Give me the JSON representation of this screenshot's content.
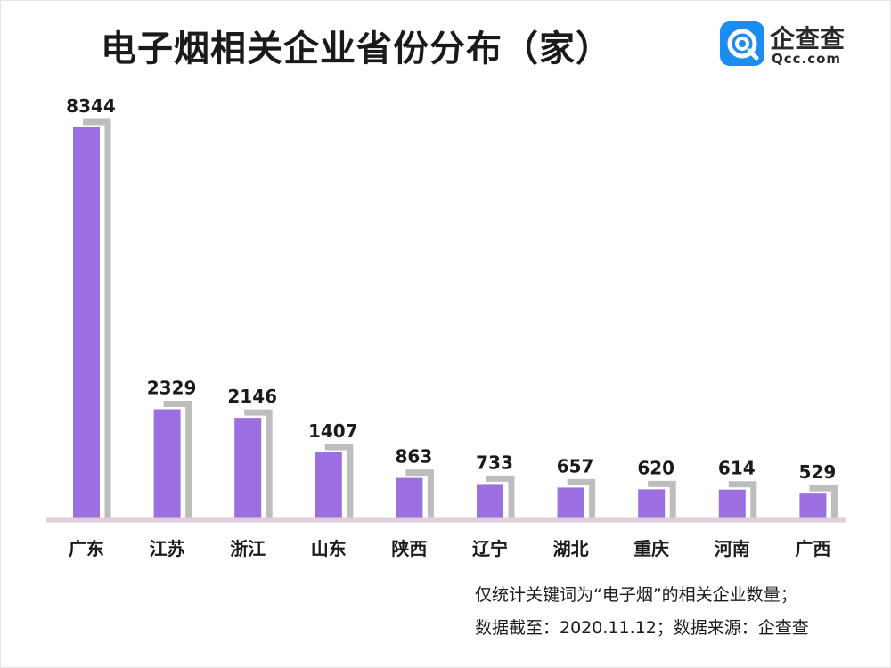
{
  "header": {
    "title": "电子烟相关企业省份分布（家）",
    "logo_name": "企查查",
    "logo_domain": "Qcc.com",
    "logo_color": "#1b8cf0"
  },
  "notes": [
    "仅统计关键词为“电子烟”的相关企业数量；",
    "数据截至：2020.11.12；数据来源：企查查"
  ],
  "chart_data": {
    "type": "bar",
    "categories": [
      "广东",
      "江苏",
      "浙江",
      "山东",
      "陕西",
      "辽宁",
      "湖北",
      "重庆",
      "河南",
      "广西"
    ],
    "values": [
      8344,
      2329,
      2146,
      1407,
      863,
      733,
      657,
      620,
      614,
      529
    ],
    "value_labels": [
      "8344",
      "2329",
      "2146",
      "1407",
      "863",
      "733",
      "657",
      "620",
      "614",
      "529"
    ],
    "title": "电子烟相关企业省份分布（家）",
    "xlabel": "",
    "ylabel": "",
    "ylim": [
      0,
      8344
    ],
    "grid": false,
    "legend": "none",
    "bar_color": "#9b6fe0",
    "shadow_color": "#bdbdbd",
    "baseline_color": "#e0cfd8"
  }
}
